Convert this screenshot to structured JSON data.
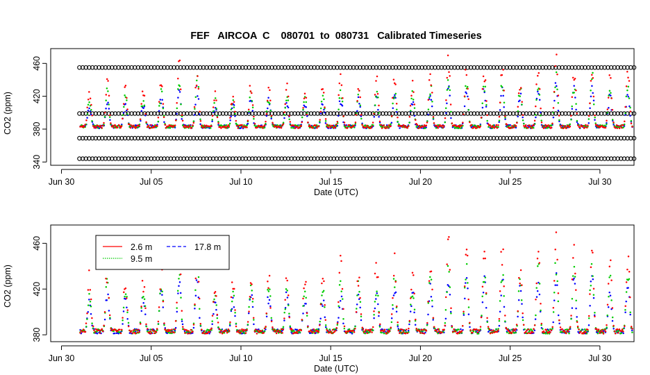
{
  "title": "FEF   AIRCOA  C    080701  to  080731   Calibrated Timeseries",
  "colors": {
    "s26": "#ff0000",
    "s95": "#00cc00",
    "s178": "#0000ff",
    "ref": "#000000"
  },
  "chart_data": [
    {
      "type": "scatter",
      "name": "top-panel",
      "xlabel": "Date (UTC)",
      "ylabel": "CO2 (ppm)",
      "xlim": [
        -0.6,
        31.9
      ],
      "ylim": [
        336,
        478
      ],
      "x_ticks": [
        0,
        5,
        10,
        15,
        20,
        25,
        30
      ],
      "x_tick_labels": [
        "Jun 30",
        "Jul 05",
        "Jul 10",
        "Jul 15",
        "Jul 20",
        "Jul 25",
        "Jul 30"
      ],
      "y_ticks": [
        340,
        380,
        420,
        460
      ],
      "y_tick_labels": [
        "340",
        "380",
        "420",
        "460"
      ],
      "reference_levels": [
        {
          "name": "calibration-standard",
          "value": 455,
          "start": 1,
          "end": 31.9
        },
        {
          "name": "calibration-standard",
          "value": 399,
          "start": 1,
          "end": 31.9
        },
        {
          "name": "calibration-standard",
          "value": 369,
          "start": 1,
          "end": 31.9
        },
        {
          "name": "calibration-standard",
          "value": 344,
          "start": 1,
          "end": 31.9
        }
      ],
      "series_refs": [
        "2.6 m",
        "9.5 m",
        "17.8 m"
      ]
    },
    {
      "type": "scatter",
      "name": "bottom-panel",
      "xlabel": "Date (UTC)",
      "ylabel": "CO2 (ppm)",
      "xlim": [
        -0.6,
        31.9
      ],
      "ylim": [
        374,
        476
      ],
      "x_ticks": [
        0,
        5,
        10,
        15,
        20,
        25,
        30
      ],
      "x_tick_labels": [
        "Jun 30",
        "Jul 05",
        "Jul 10",
        "Jul 15",
        "Jul 20",
        "Jul 25",
        "Jul 30"
      ],
      "y_ticks": [
        380,
        420,
        460
      ],
      "y_tick_labels": [
        "380",
        "420",
        "460"
      ],
      "legend": {
        "entries": [
          "2.6 m",
          "9.5 m",
          "17.8 m"
        ],
        "position": "top-left"
      }
    }
  ],
  "series": [
    {
      "name": "2.6 m",
      "color_key": "s26"
    },
    {
      "name": "9.5 m",
      "color_key": "s95"
    },
    {
      "name": "17.8 m",
      "color_key": "s178"
    }
  ],
  "daily_peaks": {
    "days": [
      1,
      2,
      3,
      4,
      5,
      6,
      7,
      8,
      9,
      10,
      11,
      12,
      13,
      14,
      15,
      16,
      17,
      18,
      19,
      20,
      21,
      22,
      23,
      24,
      25,
      26,
      27,
      28,
      29,
      30,
      31
    ],
    "s26": [
      432,
      440,
      432,
      428,
      440,
      468,
      455,
      425,
      428,
      434,
      431,
      432,
      427,
      430,
      458,
      436,
      446,
      447,
      440,
      452,
      470,
      458,
      456,
      460,
      444,
      458,
      474,
      458,
      459,
      446,
      456
    ],
    "s95": [
      418,
      432,
      424,
      422,
      430,
      440,
      448,
      418,
      420,
      428,
      424,
      424,
      420,
      425,
      430,
      428,
      428,
      432,
      426,
      436,
      445,
      444,
      440,
      440,
      432,
      442,
      450,
      442,
      448,
      432,
      442
    ],
    "s178": [
      410,
      418,
      414,
      416,
      422,
      432,
      434,
      410,
      412,
      420,
      418,
      418,
      414,
      416,
      420,
      418,
      420,
      424,
      418,
      426,
      432,
      434,
      432,
      432,
      424,
      430,
      436,
      434,
      436,
      422,
      430
    ]
  },
  "night_baseline_ppm": 383
}
